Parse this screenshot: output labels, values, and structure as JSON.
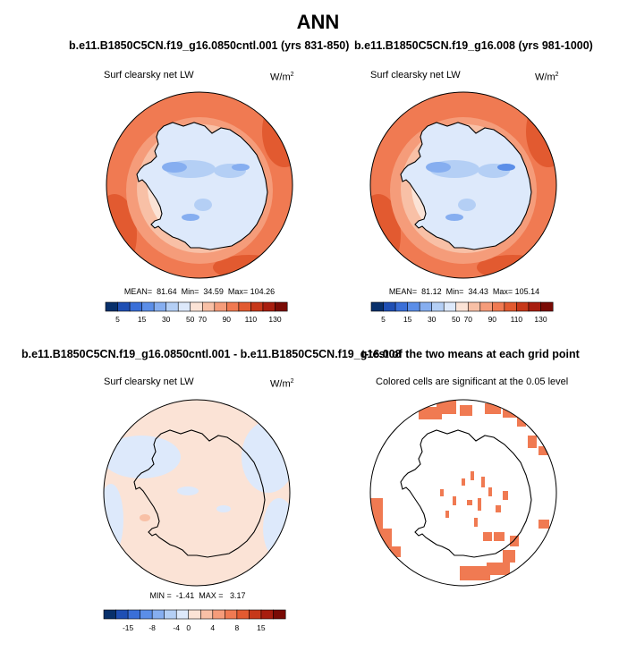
{
  "page": {
    "title": "ANN"
  },
  "panels": [
    {
      "id": "case1",
      "title": "b.e11.B1850C5CN.f19_g16.0850cntl.001 (yrs 831-850)",
      "variable": "Surf clearsky net LW",
      "units": "W/m",
      "units_sup": "2",
      "stats": "MEAN=  81.64  Min=  34.59  Max= 104.26",
      "colorbar": {
        "labels": [
          "5",
          "15",
          "30",
          "50",
          "70",
          "90",
          "110",
          "130"
        ],
        "colors": [
          "#08306b",
          "#1f4fb4",
          "#3a6fd8",
          "#5b8ee8",
          "#86aef0",
          "#b4cff5",
          "#dde9fb",
          "#fbe3d6",
          "#f8c0a6",
          "#f59c7a",
          "#f07a52",
          "#e25a30",
          "#c7381a",
          "#a81e0f",
          "#7a0b05"
        ]
      }
    },
    {
      "id": "case2",
      "title": "b.e11.B1850C5CN.f19_g16.008 (yrs 981-1000)",
      "variable": "Surf clearsky net LW",
      "units": "W/m",
      "units_sup": "2",
      "stats": "MEAN=  81.12  Min=  34.43  Max= 105.14",
      "colorbar": {
        "labels": [
          "5",
          "15",
          "30",
          "50",
          "70",
          "90",
          "110",
          "130"
        ],
        "colors": [
          "#08306b",
          "#1f4fb4",
          "#3a6fd8",
          "#5b8ee8",
          "#86aef0",
          "#b4cff5",
          "#dde9fb",
          "#fbe3d6",
          "#f8c0a6",
          "#f59c7a",
          "#f07a52",
          "#e25a30",
          "#c7381a",
          "#a81e0f",
          "#7a0b05"
        ]
      }
    },
    {
      "id": "diff",
      "title": "b.e11.B1850C5CN.f19_g16.0850cntl.001 - b.e11.B1850C5CN.f19_g16.008",
      "variable": "Surf clearsky net LW",
      "units": "W/m",
      "units_sup": "2",
      "stats": "MIN =  -1.41  MAX =   3.17",
      "colorbar": {
        "labels": [
          "-15",
          "-8",
          "-4",
          "0",
          "4",
          "8",
          "15"
        ],
        "colors": [
          "#08306b",
          "#1f4fb4",
          "#3a6fd8",
          "#5b8ee8",
          "#86aef0",
          "#b4cff5",
          "#dde9fb",
          "#fbe3d6",
          "#f8c0a6",
          "#f59c7a",
          "#f07a52",
          "#e25a30",
          "#c7381a",
          "#a81e0f",
          "#7a0b05"
        ]
      }
    },
    {
      "id": "ttest",
      "title": "t-test of the two means at each grid point",
      "variable": "Colored cells are significant at the 0.05 level"
    }
  ],
  "colors": {
    "ocean_warm": "#f07a52",
    "ocean_mid": "#f59c7a",
    "ocean_light": "#f8c0a6",
    "ice_pale": "#dde9fb",
    "ice_light": "#b4cff5",
    "ice_blue": "#86aef0",
    "diff_base": "#fbe3d6",
    "diff_blue": "#dde9fb",
    "signif": "#f07a52"
  }
}
